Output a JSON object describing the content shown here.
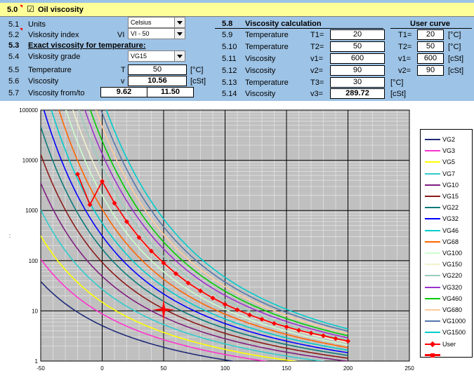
{
  "header": {
    "number": "5.0",
    "checkbox_glyph": "☑",
    "title": "Oil viscosity"
  },
  "left": {
    "rows": [
      {
        "num": "5.1",
        "label": "Units"
      },
      {
        "num": "5.2",
        "label": "Viskosity index",
        "sym": "VI"
      },
      {
        "num": "5.3",
        "label": "Exact viscosity for temperature:"
      },
      {
        "num": "5.4",
        "label": "Viskosity grade"
      },
      {
        "num": "5.5",
        "label": "Temperature",
        "sym": "T",
        "value": "50",
        "unit": "[°C]"
      },
      {
        "num": "5.6",
        "label": "Viscosity",
        "sym": "v",
        "value": "10.56",
        "unit": "[cSt]"
      },
      {
        "num": "5.7",
        "label": "Viscosity from/to",
        "value_from": "9.62",
        "value_to": "11.50"
      }
    ],
    "units_select": "Celsius",
    "vi_select": "VI - 50",
    "grade_select": "VG15"
  },
  "calc": {
    "num": "5.8",
    "title": "Viscosity calculation",
    "rows": [
      {
        "num": "5.9",
        "label": "Temperature",
        "sym": "T1=",
        "value": "20"
      },
      {
        "num": "5.10",
        "label": "Temperature",
        "sym": "T2=",
        "value": "50"
      },
      {
        "num": "5.11",
        "label": "Viscosity",
        "sym": "v1=",
        "value": "600"
      },
      {
        "num": "5.12",
        "label": "Viscosity",
        "sym": "v2=",
        "value": "90"
      },
      {
        "num": "5.13",
        "label": "Temperature",
        "sym": "T3=",
        "value": "30",
        "unit": "[°C]"
      },
      {
        "num": "5.14",
        "label": "Viscosity",
        "sym": "v3=",
        "value": "289.72",
        "unit": "[cSt]"
      }
    ]
  },
  "user_curve": {
    "title": "User curve",
    "rows": [
      {
        "sym": "T1=",
        "value": "20",
        "unit": "[°C]"
      },
      {
        "sym": "T2=",
        "value": "50",
        "unit": "[°C]"
      },
      {
        "sym": "v1=",
        "value": "600",
        "unit": "[cSt]"
      },
      {
        "sym": "v2=",
        "value": "90",
        "unit": "[cSt]"
      }
    ]
  },
  "chart_data": {
    "type": "line",
    "y_scale": "log",
    "xlim": [
      -50,
      250
    ],
    "ylim": [
      1,
      100000
    ],
    "x_ticks": [
      "-50",
      "0",
      "50",
      "100",
      "150",
      "200",
      "250"
    ],
    "y_ticks": [
      "1",
      "10",
      "100",
      "1000",
      "10000",
      "100000"
    ],
    "y_tick_values": [
      1,
      10,
      100,
      1000,
      10000,
      100000
    ],
    "grid": true,
    "legend_position": "right",
    "y_axis_mark": ":",
    "grades": [
      {
        "name": "VG2",
        "v40": 2.2,
        "color": "#1f2a78"
      },
      {
        "name": "VG3",
        "v40": 3.2,
        "color": "#ff33cc"
      },
      {
        "name": "VG5",
        "v40": 4.6,
        "color": "#ffff00"
      },
      {
        "name": "VG7",
        "v40": 6.8,
        "color": "#33cccc"
      },
      {
        "name": "VG10",
        "v40": 10,
        "color": "#7f1f7f"
      },
      {
        "name": "VG15",
        "v40": 15,
        "color": "#8b1a1a"
      },
      {
        "name": "VG22",
        "v40": 22,
        "color": "#0b7a7a"
      },
      {
        "name": "VG32",
        "v40": 32,
        "color": "#0000ff"
      },
      {
        "name": "VG46",
        "v40": 46,
        "color": "#00cccc"
      },
      {
        "name": "VG68",
        "v40": 68,
        "color": "#ff6600"
      },
      {
        "name": "VG100",
        "v40": 100,
        "color": "#ccffcc"
      },
      {
        "name": "VG150",
        "v40": 150,
        "color": "#f2f2cc"
      },
      {
        "name": "VG220",
        "v40": 220,
        "color": "#99ccbb"
      },
      {
        "name": "VG320",
        "v40": 320,
        "color": "#9933cc"
      },
      {
        "name": "VG460",
        "v40": 460,
        "color": "#00cc00"
      },
      {
        "name": "VG680",
        "v40": 680,
        "color": "#ffcc99"
      },
      {
        "name": "VG1000",
        "v40": 1000,
        "color": "#5577aa"
      },
      {
        "name": "VG1500",
        "v40": 1500,
        "color": "#00cccc"
      }
    ],
    "user_series": {
      "name": "User",
      "color": "#ff0000",
      "x": [
        -20,
        -10,
        0,
        10,
        20,
        30,
        40,
        50,
        60,
        70,
        80,
        90,
        100,
        110,
        120,
        130,
        140,
        150,
        160,
        170,
        180,
        190,
        200
      ],
      "y": [
        5300,
        1300,
        3800,
        1400,
        600,
        290,
        155,
        90,
        55,
        36,
        25,
        18,
        13.5,
        10.5,
        8.3,
        6.8,
        5.6,
        4.8,
        4.1,
        3.6,
        3.2,
        2.8,
        2.5
      ]
    },
    "marker": {
      "name": "",
      "x": 50,
      "y": 10.56,
      "color": "#ff0000"
    }
  }
}
